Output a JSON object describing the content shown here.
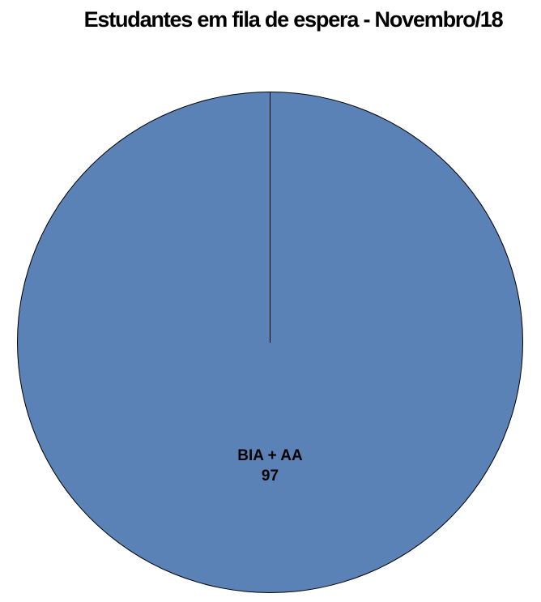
{
  "page": {
    "background": "#FFFFFF"
  },
  "chart_data": {
    "type": "pie",
    "title": "Estudantes em fila de espera - Novembro/18",
    "slices": [
      {
        "label": "BIA + AA",
        "value": 97,
        "percent": 100,
        "color": "#5B82B6"
      }
    ],
    "total": 97,
    "legend": "none",
    "start_angle_deg": 0,
    "slice_border_color": "#000000",
    "data_label": {
      "category": "BIA + AA",
      "value": "97",
      "color": "#000000",
      "bold": true,
      "position": "inside-mid-radius-bottom"
    },
    "title_color": "#000000",
    "background": "#FFFFFF"
  }
}
